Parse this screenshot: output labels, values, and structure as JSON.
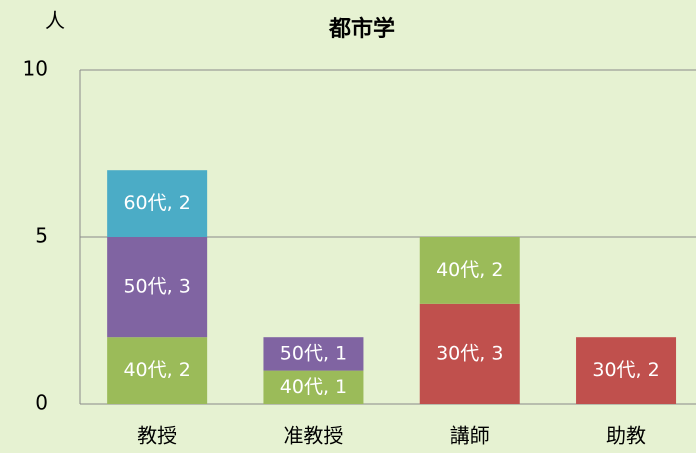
{
  "chart_data": {
    "type": "stacked_bar",
    "title": "都市学",
    "y_label": "人",
    "categories": [
      "教授",
      "准教授",
      "講師",
      "助教"
    ],
    "series": [
      {
        "name": "30代",
        "color": "#c0504d",
        "values": [
          null,
          null,
          3,
          2
        ],
        "value_labels": [
          null,
          null,
          "30代, 3",
          "30代, 2"
        ]
      },
      {
        "name": "40代",
        "color": "#9bbb59",
        "values": [
          2,
          1,
          2,
          null
        ],
        "value_labels": [
          "40代, 2",
          "40代, 1",
          "40代, 2",
          null
        ]
      },
      {
        "name": "50代",
        "color": "#8064a2",
        "values": [
          3,
          1,
          null,
          null
        ],
        "value_labels": [
          "50代, 3",
          "50代, 1",
          null,
          null
        ]
      },
      {
        "name": "60代",
        "color": "#4bacc6",
        "values": [
          2,
          null,
          null,
          null
        ],
        "value_labels": [
          "60代, 2",
          null,
          null,
          null
        ]
      }
    ],
    "ylim": [
      0,
      10
    ],
    "yticks": [
      0,
      5,
      10
    ],
    "grid": true
  }
}
